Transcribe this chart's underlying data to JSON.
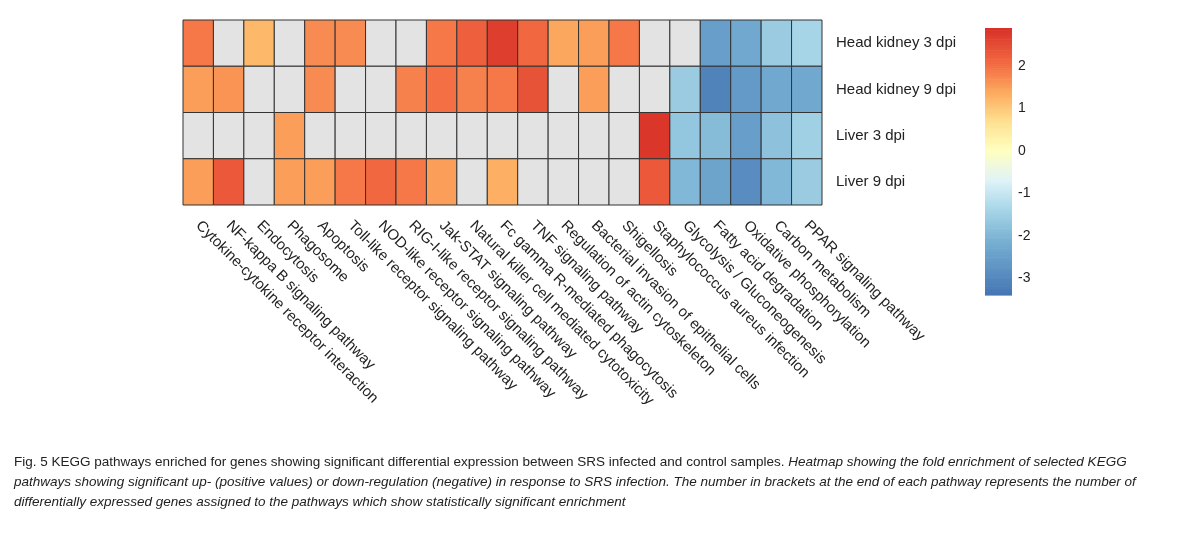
{
  "chart_data": {
    "type": "heatmap",
    "categories": [
      "Cytokine-cytokine receptor interaction",
      "NF-kappa B signaling pathway",
      "Endocytosis",
      "Phagosome",
      "Apoptosis",
      "Toll-like receptor signaling pathway",
      "NOD-like receptor signaling pathway",
      "RIG-I-like receptor signaling pathway",
      "Jak-STAT signaling pathway",
      "Natural killer cell mediated cytotoxicity",
      "Fc gamma R-mediated phagocytosis",
      "TNF signaling pathway",
      "Regulation of actin cytoskeleton",
      "Bacterial invasion of epithelial cells",
      "Shigellosis",
      "Staphylococcus aureus infection",
      "Glycolysis / Gluconeogenesis",
      "Fatty acid degradation",
      "Oxidative phosphorylation",
      "Carbon metabolism",
      "PPAR signaling pathway"
    ],
    "y_categories": [
      "Head kidney 3 dpi",
      "Head kidney 9 dpi",
      "Liver 3 dpi",
      "Liver 9 dpi"
    ],
    "cells": [
      [
        1.9,
        null,
        1.2,
        null,
        1.7,
        1.7,
        null,
        null,
        1.9,
        2.2,
        2.7,
        2.1,
        1.4,
        1.5,
        1.9,
        null,
        null,
        -2.5,
        -2.3,
        -1.6,
        -1.4
      ],
      [
        1.5,
        1.6,
        null,
        null,
        1.7,
        null,
        null,
        1.8,
        2.0,
        1.8,
        1.9,
        2.4,
        null,
        1.5,
        null,
        null,
        -1.6,
        -3.1,
        -2.6,
        -2.3,
        -2.3
      ],
      [
        null,
        null,
        null,
        1.5,
        null,
        null,
        null,
        null,
        null,
        null,
        null,
        null,
        null,
        null,
        null,
        2.8,
        -1.7,
        -1.9,
        -2.5,
        -1.8,
        -1.5
      ],
      [
        1.5,
        2.3,
        null,
        1.5,
        1.5,
        1.9,
        2.1,
        1.9,
        1.5,
        null,
        1.3,
        null,
        null,
        null,
        null,
        2.3,
        -2.0,
        -2.4,
        -2.9,
        -2.0,
        -1.6
      ]
    ],
    "clim": [
      -3.4,
      2.9
    ],
    "cticks": [
      -3,
      -2,
      -1,
      0,
      1,
      2
    ],
    "annotations": [
      "Fig. 5 KEGG pathways enriched for genes showing significant differential expression between SRS infected and control samples.",
      "Heatmap showing the fold enrichment of selected KEGG pathways showing significant up- (positive values) or down-regulation (negative) in response to SRS infection. The number in brackets at the end of each pathway represents the number of differentially expressed genes assigned to the pathways which show statistically significant enrichment"
    ]
  }
}
